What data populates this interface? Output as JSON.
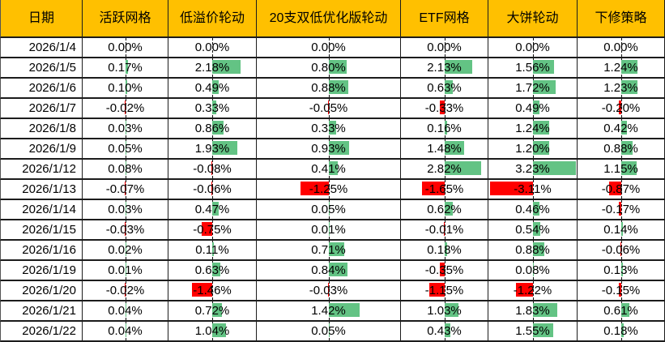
{
  "colors": {
    "header_bg": "#FFC000",
    "positive_bar": "#63C384",
    "negative_bar": "#FF0000",
    "grid_line": "#1c1c1c",
    "text": "#000000"
  },
  "table": {
    "columns": [
      {
        "key": "date",
        "label": "日期"
      },
      {
        "key": "active-grid",
        "label": "活跃网格"
      },
      {
        "key": "low-premium-rotation",
        "label": "低溢价轮动"
      },
      {
        "key": "double-low-20-optimized-rotation",
        "label": "20支双低优化版轮动"
      },
      {
        "key": "etf-grid",
        "label": "ETF网格"
      },
      {
        "key": "big-pie-rotation",
        "label": "大饼轮动"
      },
      {
        "key": "downward-revision-strategy",
        "label": "下修策略"
      }
    ],
    "rows": [
      {
        "date": "2026/1/4",
        "values": [
          "0.00%",
          "0.00%",
          "0.00%",
          "0.00%",
          "0.00%",
          "0.00%"
        ]
      },
      {
        "date": "2026/1/5",
        "values": [
          "0.17%",
          "2.18%",
          "0.80%",
          "2.13%",
          "1.56%",
          "1.24%"
        ]
      },
      {
        "date": "2026/1/6",
        "values": [
          "0.10%",
          "0.49%",
          "0.88%",
          "0.63%",
          "1.72%",
          "1.23%"
        ]
      },
      {
        "date": "2026/1/7",
        "values": [
          "-0.02%",
          "0.33%",
          "-0.05%",
          "-0.33%",
          "0.49%",
          "-0.20%"
        ]
      },
      {
        "date": "2026/1/8",
        "values": [
          "0.03%",
          "0.86%",
          "0.33%",
          "0.16%",
          "1.24%",
          "0.42%"
        ]
      },
      {
        "date": "2026/1/9",
        "values": [
          "0.05%",
          "1.93%",
          "0.93%",
          "1.48%",
          "1.20%",
          "0.88%"
        ]
      },
      {
        "date": "2026/1/12",
        "values": [
          "0.08%",
          "-0.08%",
          "0.41%",
          "2.82%",
          "3.23%",
          "1.15%"
        ]
      },
      {
        "date": "2026/1/13",
        "values": [
          "-0.07%",
          "-0.06%",
          "-1.25%",
          "-1.65%",
          "-3.11%",
          "-0.87%"
        ]
      },
      {
        "date": "2026/1/14",
        "values": [
          "0.03%",
          "0.47%",
          "0.05%",
          "0.62%",
          "0.46%",
          "-0.17%"
        ]
      },
      {
        "date": "2026/1/15",
        "values": [
          "-0.03%",
          "-0.75%",
          "0.01%",
          "-0.01%",
          "0.54%",
          "0.14%"
        ]
      },
      {
        "date": "2026/1/16",
        "values": [
          "0.02%",
          "0.11%",
          "0.71%",
          "0.18%",
          "0.88%",
          "-0.06%"
        ]
      },
      {
        "date": "2026/1/19",
        "values": [
          "0.01%",
          "0.63%",
          "0.84%",
          "-0.35%",
          "0.08%",
          "0.13%"
        ]
      },
      {
        "date": "2026/1/20",
        "values": [
          "-0.02%",
          "-1.46%",
          "-0.03%",
          "-1.15%",
          "-1.22%",
          "-0.15%"
        ]
      },
      {
        "date": "2026/1/21",
        "values": [
          "0.04%",
          "0.72%",
          "1.42%",
          "1.03%",
          "1.83%",
          "0.61%"
        ]
      },
      {
        "date": "2026/1/22",
        "values": [
          "0.04%",
          "1.04%",
          "0.05%",
          "0.43%",
          "1.55%",
          "0.18%"
        ]
      }
    ]
  }
}
